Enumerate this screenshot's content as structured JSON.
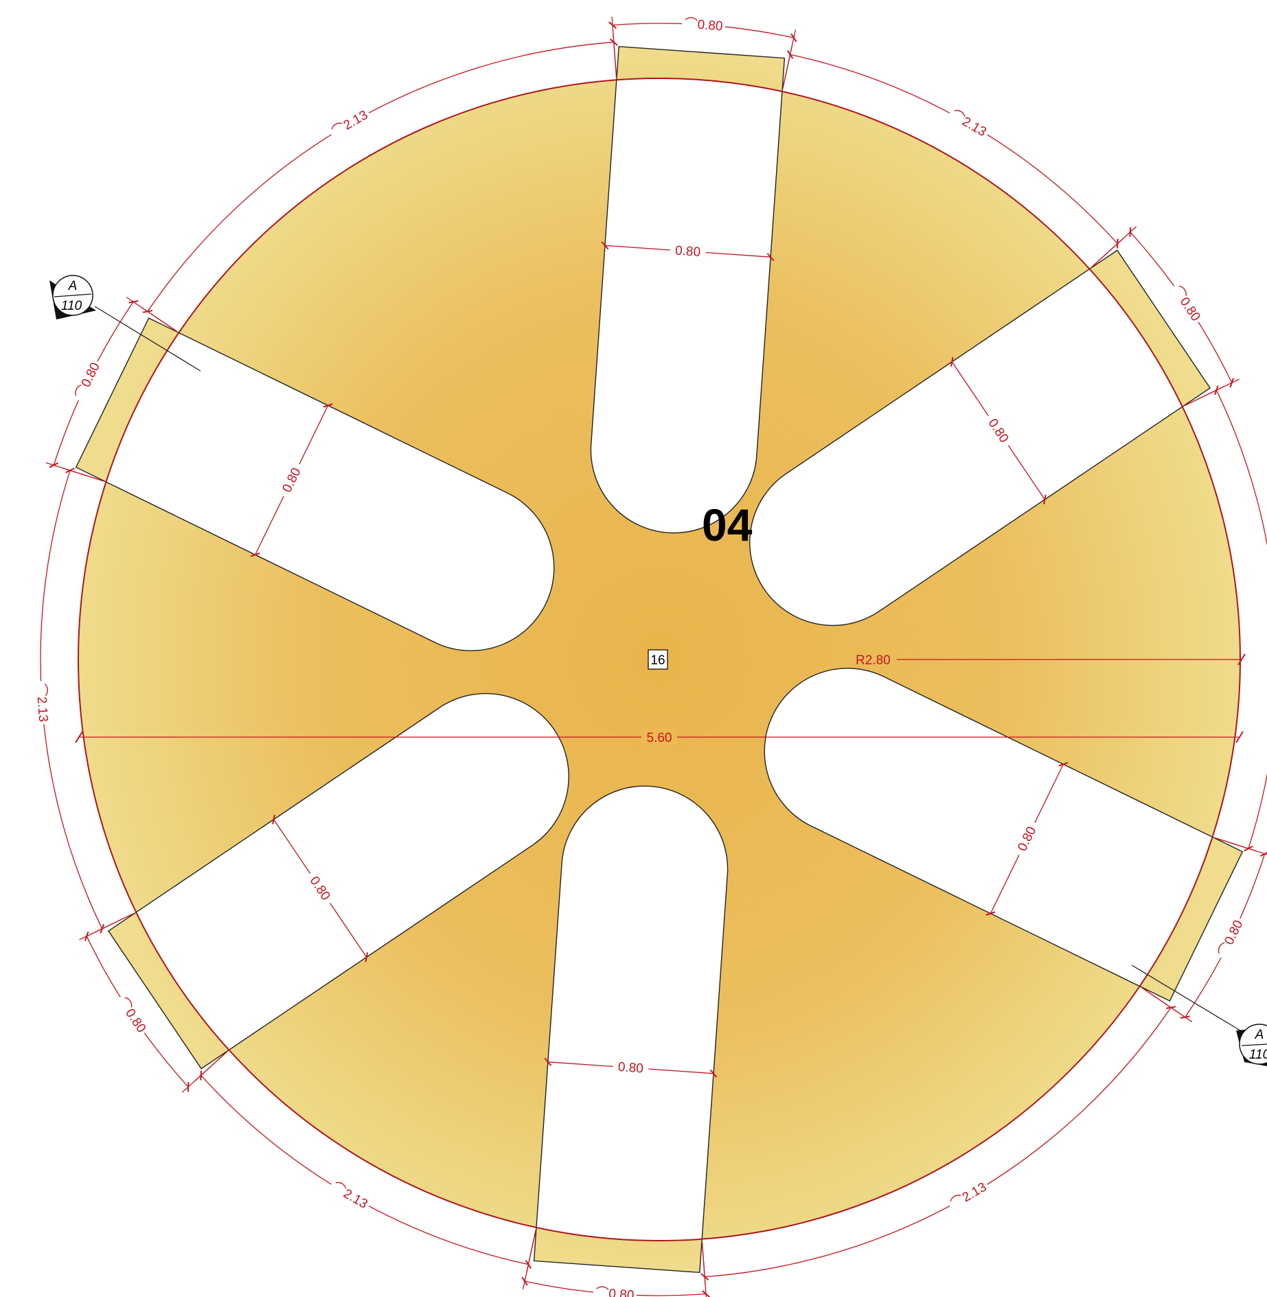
{
  "drawing": {
    "part_number": "04",
    "item_tag": "16",
    "dimensions": {
      "overall_diameter": "5.60",
      "radius": "R2.80",
      "slot_width": "0.80",
      "arc_between_slots": "⌒2.13",
      "arc_slot_opening": "⌒0.80"
    },
    "section_marker": {
      "letter": "A",
      "sheet": "110"
    },
    "colors": {
      "part_fill_center": "#eab44c",
      "part_fill_edge": "#efdc8c",
      "dimension": "#c8141e",
      "outline": "#222222"
    }
  }
}
